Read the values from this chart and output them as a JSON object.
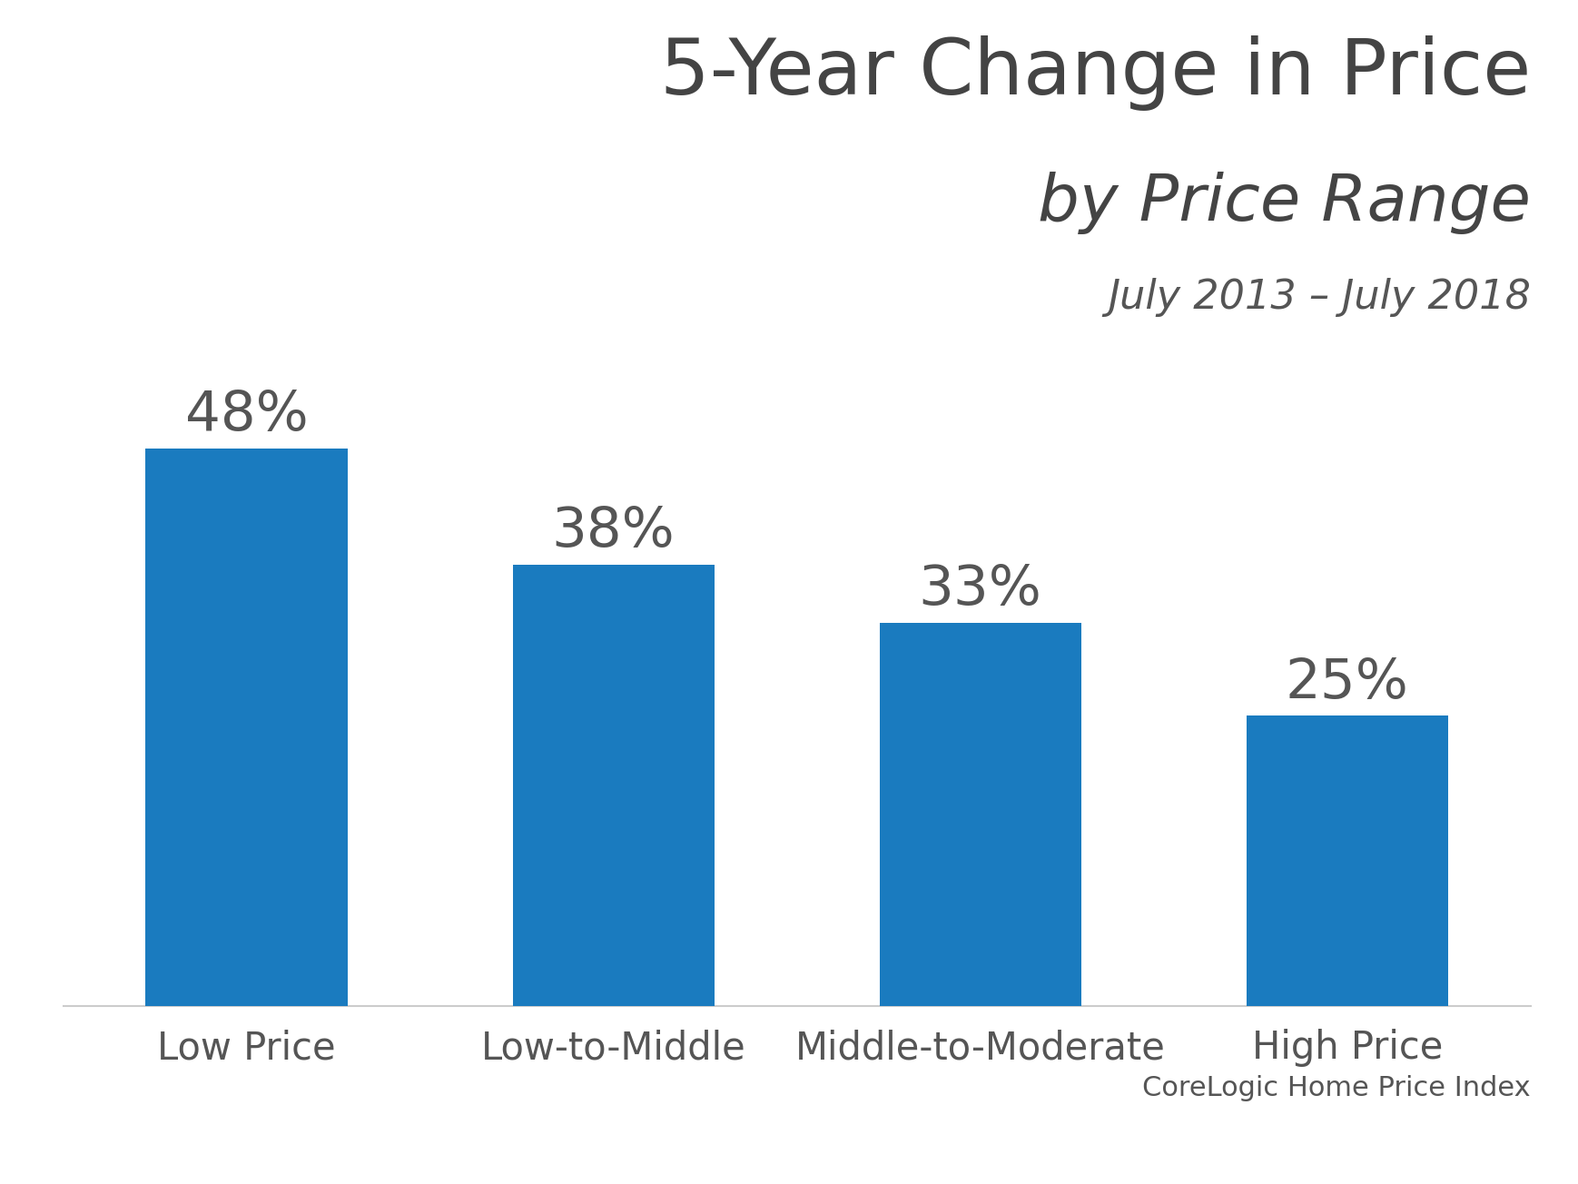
{
  "title_line1": "5-Year Change in Price",
  "title_line2": "by Price Range",
  "title_line3": "July 2013 – July 2018",
  "categories": [
    "Low Price",
    "Low-to-Middle",
    "Middle-to-Moderate",
    "High Price"
  ],
  "values": [
    48,
    38,
    33,
    25
  ],
  "labels": [
    "48%",
    "38%",
    "33%",
    "25%"
  ],
  "bar_color": "#1a7bbf",
  "background_color": "#ffffff",
  "text_color": "#555555",
  "title_color": "#444444",
  "source_text": "CoreLogic Home Price Index",
  "ylim": [
    0,
    56
  ],
  "bar_width": 0.55,
  "title1_fontsize": 62,
  "title2_fontsize": 52,
  "title3_fontsize": 32,
  "label_fontsize": 44,
  "tick_fontsize": 30,
  "source_fontsize": 22
}
